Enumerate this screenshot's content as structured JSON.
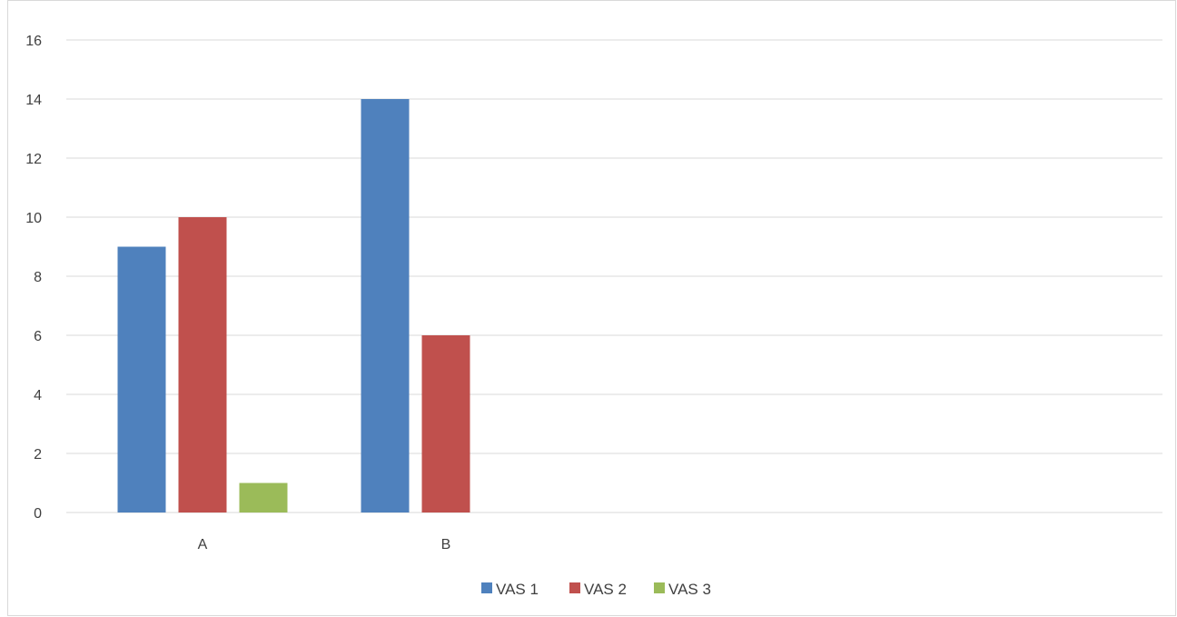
{
  "chart_data": {
    "type": "bar",
    "categories": [
      "A",
      "B"
    ],
    "series": [
      {
        "name": "VAS 1",
        "values": [
          9,
          14
        ],
        "color": "#4f81bd"
      },
      {
        "name": "VAS 2",
        "values": [
          10,
          6
        ],
        "color": "#c0504d"
      },
      {
        "name": "VAS 3",
        "values": [
          1,
          null
        ],
        "color": "#9bbb59"
      }
    ],
    "title": "",
    "xlabel": "",
    "ylabel": "",
    "ylim": [
      0,
      16
    ],
    "y_ticks": [
      "0",
      "2",
      "4",
      "6",
      "8",
      "10",
      "12",
      "14",
      "16"
    ],
    "grid": true,
    "legend": "bottom"
  }
}
